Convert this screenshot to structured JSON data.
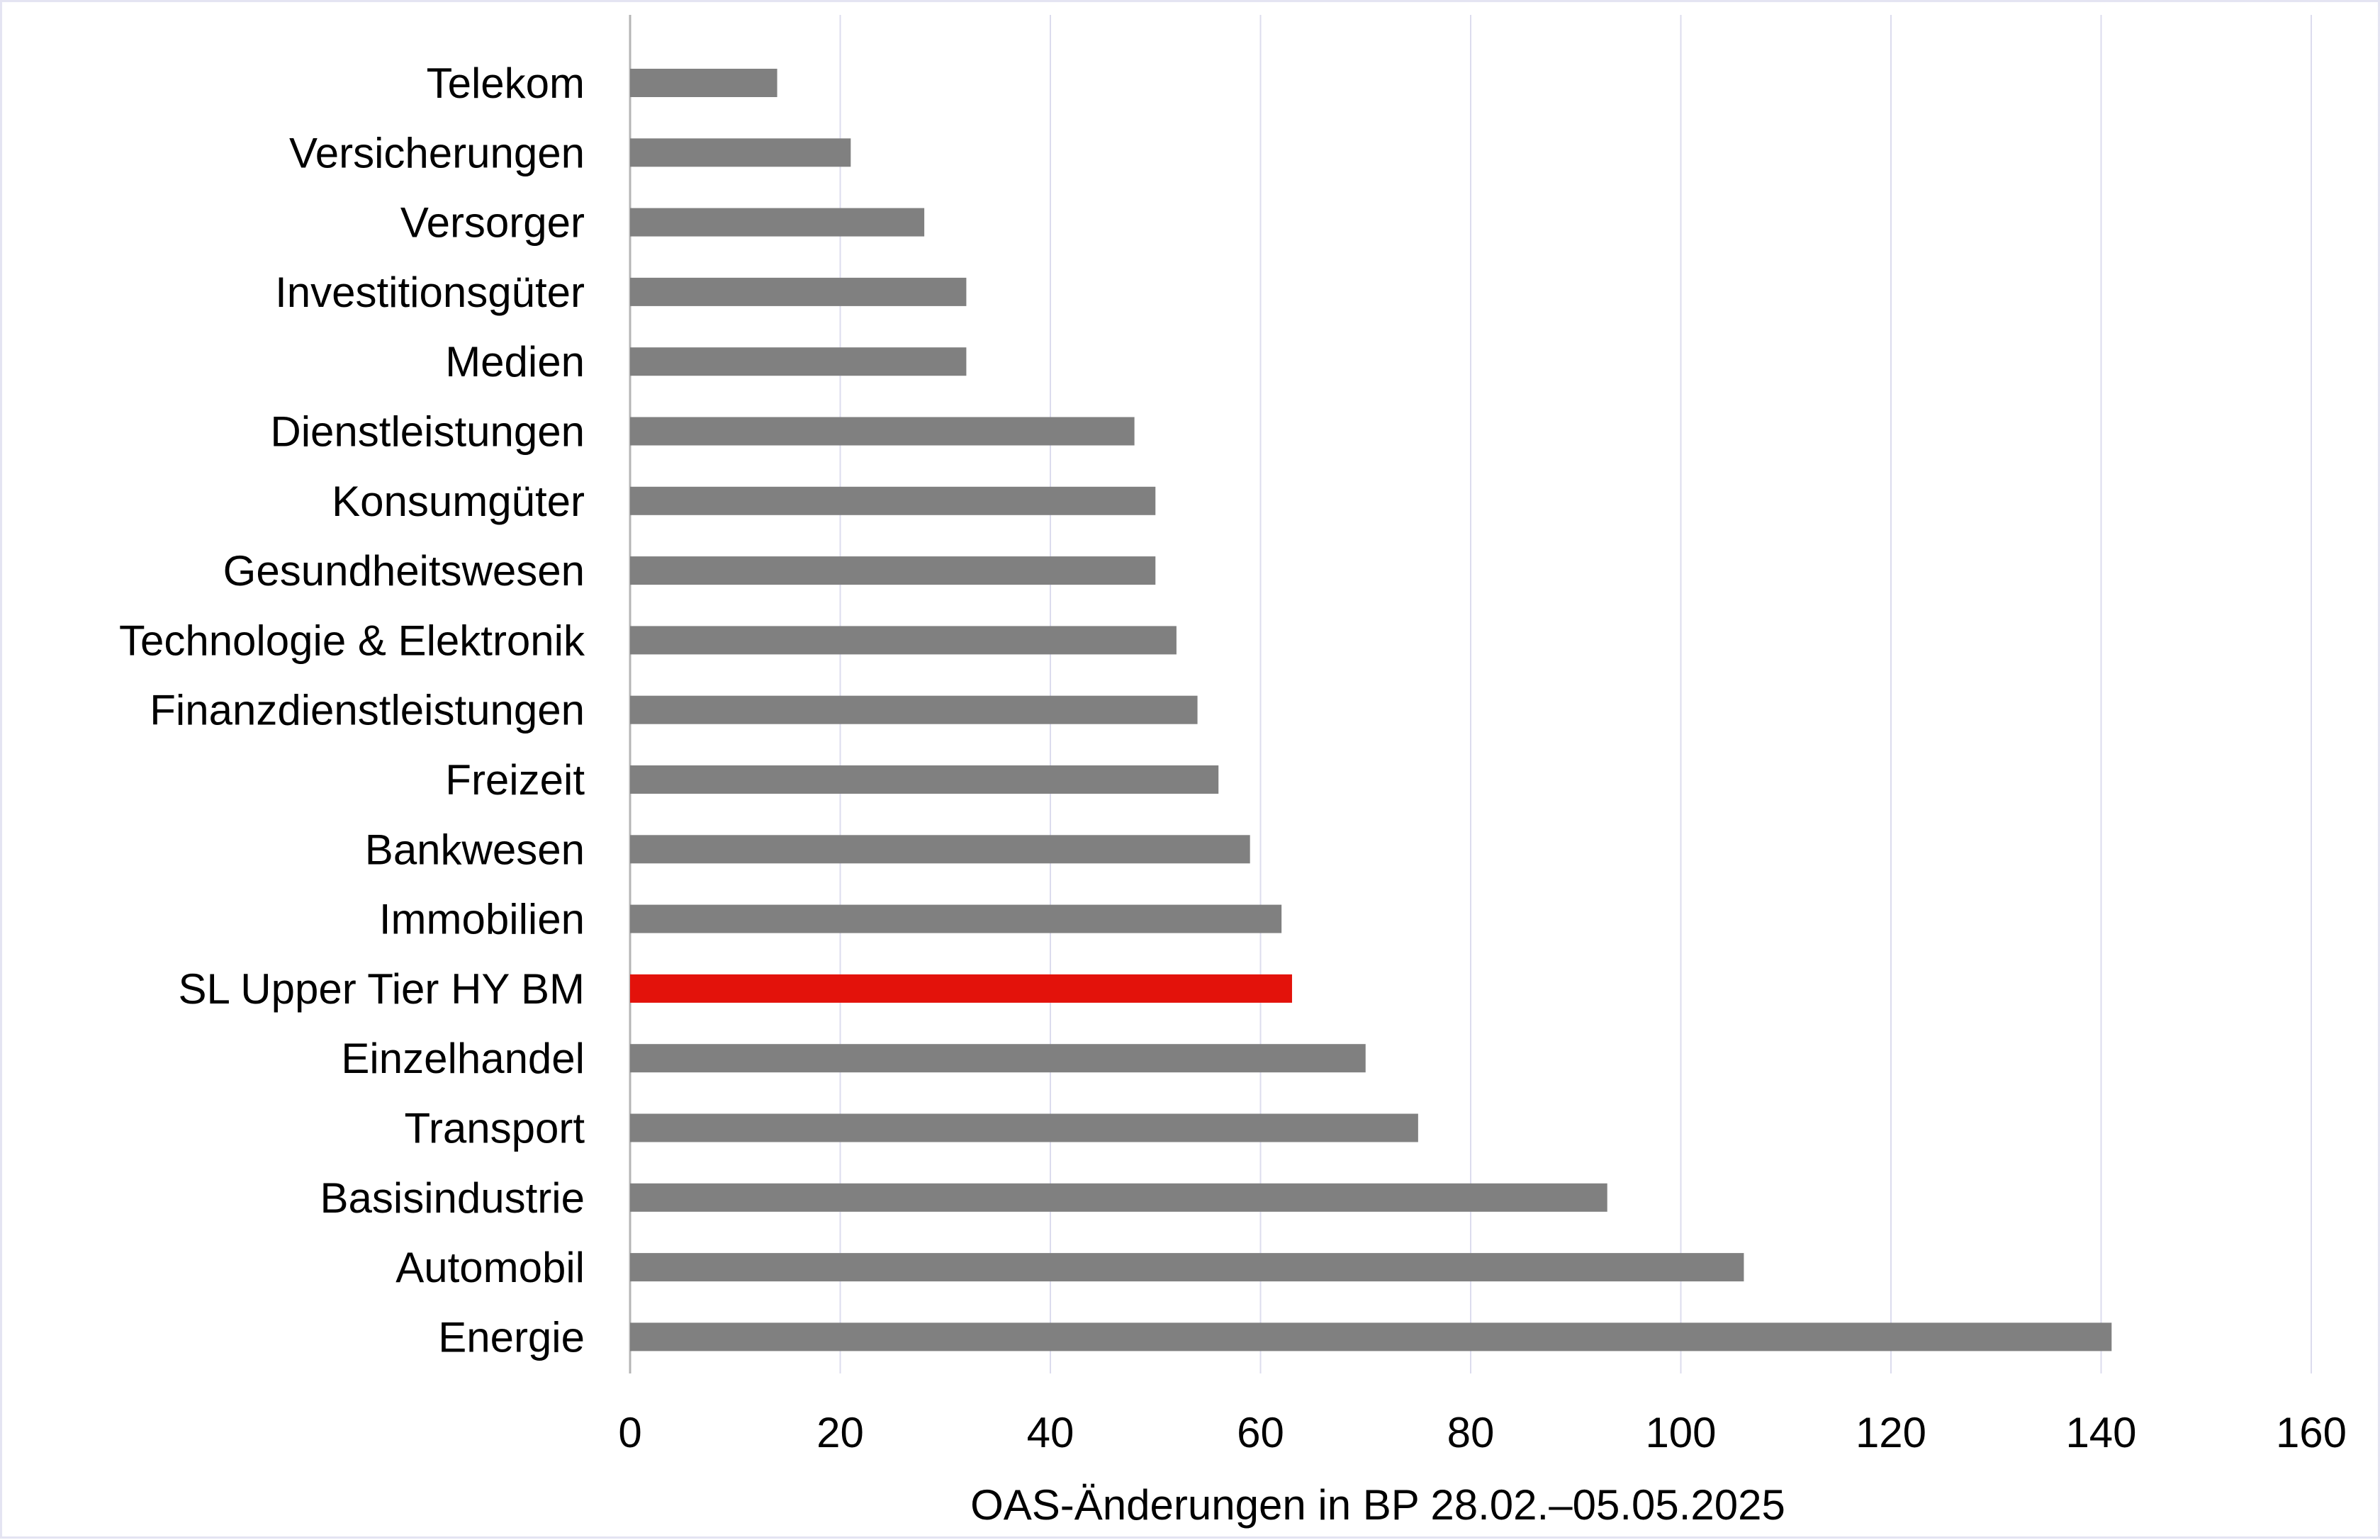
{
  "chart_data": {
    "type": "bar",
    "orientation": "horizontal",
    "categories": [
      "Telekom",
      "Versicherungen",
      "Versorger",
      "Investitionsgüter",
      "Medien",
      "Dienstleistungen",
      "Konsumgüter",
      "Gesundheitswesen",
      "Technologie & Elektronik",
      "Finanzdienstleistungen",
      "Freizeit",
      "Bankwesen",
      "Immobilien",
      "SL Upper Tier HY BM",
      "Einzelhandel",
      "Transport",
      "Basisindustrie",
      "Automobil",
      "Energie"
    ],
    "values": [
      14,
      21,
      28,
      32,
      32,
      48,
      50,
      50,
      52,
      54,
      56,
      59,
      62,
      63,
      70,
      75,
      93,
      106,
      141
    ],
    "highlight_category": "SL Upper Tier HY BM",
    "title": "",
    "xlabel": "OAS-Änderungen in BP 28.02.–05.05.2025",
    "ylabel": "",
    "xlim": [
      0,
      160
    ],
    "xticks": [
      "0",
      "20",
      "40",
      "60",
      "80",
      "100",
      "120",
      "140",
      "160"
    ],
    "grid": "vertical",
    "legend": "none",
    "colors": {
      "bar": "#808080",
      "highlight": "#e3120b",
      "grid": "#dcdcee",
      "axis": "#b5b5b5",
      "border": "#e4e4f2"
    }
  }
}
